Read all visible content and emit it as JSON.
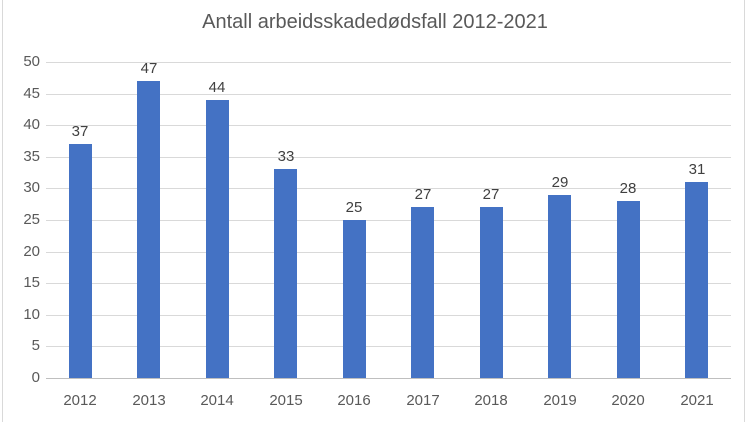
{
  "chart_data": {
    "type": "bar",
    "title": "Antall arbeidsskadedødsfall 2012-2021",
    "categories": [
      "2012",
      "2013",
      "2014",
      "2015",
      "2016",
      "2017",
      "2018",
      "2019",
      "2020",
      "2021"
    ],
    "values": [
      37,
      47,
      44,
      33,
      25,
      27,
      27,
      29,
      28,
      31
    ],
    "xlabel": "",
    "ylabel": "",
    "ylim": [
      0,
      50
    ],
    "ytick_step": 5,
    "grid": true,
    "legend_position": "none",
    "bar_color": "#4472c4",
    "gridline_color": "#d9d9d9",
    "axis_line_color": "#bfbfbf",
    "title_color": "#595959",
    "axis_text_color": "#595959",
    "data_label_color": "#404040"
  }
}
